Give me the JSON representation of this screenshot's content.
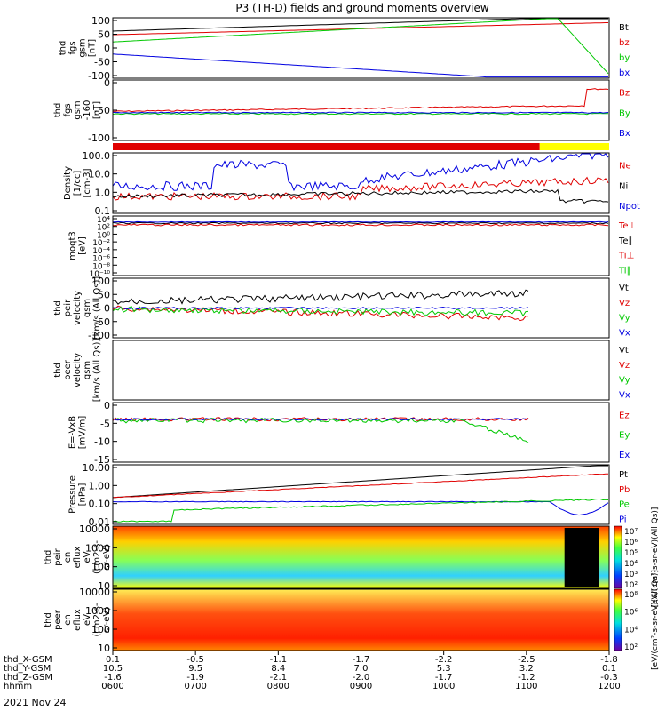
{
  "title": "P3 (TH-D) fields and ground moments overview",
  "date_label": "2021 Nov 24",
  "colors": {
    "black": "#000000",
    "red": "#e00000",
    "green": "#00c800",
    "blue": "#0000e0",
    "yellow": "#ffff00"
  },
  "chart_data": [
    {
      "type": "line",
      "ylabel": [
        "thd",
        "fgs",
        "gsm",
        "[nT]"
      ],
      "yticks": [
        "100",
        "50",
        "0",
        "-50",
        "-100"
      ],
      "ylim": [
        -100,
        100
      ],
      "legend": [
        {
          "name": "Bt",
          "color": "black"
        },
        {
          "name": "bz",
          "color": "red"
        },
        {
          "name": "by",
          "color": "green"
        },
        {
          "name": "bx",
          "color": "blue"
        }
      ]
    },
    {
      "type": "line",
      "ylabel": [
        "thd",
        "fgs",
        "gsm",
        "-160",
        "[nT]"
      ],
      "yticks": [
        "0",
        "-50",
        "-100"
      ],
      "ylim": [
        -130,
        30
      ],
      "legend": [
        {
          "name": "Bz",
          "color": "red"
        },
        {
          "name": "By",
          "color": "green"
        },
        {
          "name": "Bx",
          "color": "blue"
        }
      ]
    },
    {
      "type": "bar",
      "description_bar": true,
      "segments": [
        {
          "from": 0,
          "to": 0.86,
          "color": "red"
        },
        {
          "from": 0.86,
          "to": 1.0,
          "color": "yellow"
        }
      ]
    },
    {
      "type": "line",
      "scale": "log",
      "ylabel": [
        "Density",
        "[1/cc]",
        "[cm-3]"
      ],
      "yticks": [
        "100.0",
        "10.0",
        "1.0",
        "0.1"
      ],
      "ylim": [
        0.1,
        200
      ],
      "legend": [
        {
          "name": "Ne",
          "color": "red"
        },
        {
          "name": "Ni",
          "color": "black"
        },
        {
          "name": "Npot",
          "color": "blue"
        }
      ]
    },
    {
      "type": "line",
      "scale": "log",
      "ylabel": [
        "moqt3",
        "[eV]"
      ],
      "yticks": [
        "10⁴",
        "10²",
        "10⁰",
        "10⁻²",
        "10⁻⁴",
        "10⁻⁶",
        "10⁻⁸",
        "10⁻¹⁰"
      ],
      "legend": [
        {
          "name": "Te⊥",
          "color": "red"
        },
        {
          "name": "Te∥",
          "color": "black"
        },
        {
          "name": "Ti⊥",
          "color": "red"
        },
        {
          "name": "Ti∥",
          "color": "green"
        }
      ]
    },
    {
      "type": "line",
      "ylabel": [
        "thd",
        "peir",
        "velocity",
        "gsm",
        "[km/s (All Qs)]"
      ],
      "yticks": [
        "100",
        "50",
        "0",
        "-50",
        "-100"
      ],
      "ylim": [
        -100,
        100
      ],
      "legend": [
        {
          "name": "Vt",
          "color": "black"
        },
        {
          "name": "Vz",
          "color": "red"
        },
        {
          "name": "Vy",
          "color": "green"
        },
        {
          "name": "Vx",
          "color": "blue"
        }
      ]
    },
    {
      "type": "line",
      "ylabel": [
        "thd",
        "peer",
        "velocity",
        "gsm",
        "[km/s (All Qs)]"
      ],
      "yticks": [],
      "legend": [
        {
          "name": "Vt",
          "color": "black"
        },
        {
          "name": "Vz",
          "color": "red"
        },
        {
          "name": "Vy",
          "color": "green"
        },
        {
          "name": "Vx",
          "color": "blue"
        }
      ]
    },
    {
      "type": "line",
      "ylabel": [
        "E=-VxB",
        "[mV/m]"
      ],
      "yticks": [
        "0",
        "-5",
        "-10",
        "-15"
      ],
      "ylim": [
        -15,
        5
      ],
      "legend": [
        {
          "name": "Ez",
          "color": "red"
        },
        {
          "name": "Ey",
          "color": "green"
        },
        {
          "name": "Ex",
          "color": "blue"
        }
      ]
    },
    {
      "type": "line",
      "scale": "log",
      "ylabel": [
        "Pressure",
        "[nPa]"
      ],
      "yticks": [
        "10.00",
        "1.00",
        "0.10",
        "0.01"
      ],
      "ylim": [
        0.005,
        30
      ],
      "legend": [
        {
          "name": "Pt",
          "color": "black"
        },
        {
          "name": "Pb",
          "color": "red"
        },
        {
          "name": "Pe",
          "color": "green"
        },
        {
          "name": "Pi",
          "color": "blue"
        }
      ]
    },
    {
      "type": "heatmap",
      "ylabel": [
        "thd",
        "peir",
        "en",
        "eflux",
        "eV",
        "(cm2-s-",
        "sr-eV)"
      ],
      "yticks": [
        "10000",
        "1000",
        "100",
        "10"
      ],
      "colorbar_ticks": [
        "10⁷",
        "10⁶",
        "10⁵",
        "10⁴",
        "10³",
        "10²"
      ],
      "colorbar_label": "[eV/(cm²-s-sr-eV)(All Qs)]"
    },
    {
      "type": "heatmap",
      "ylabel": [
        "thd",
        "peer",
        "en",
        "eflux",
        "eV",
        "(cm2-s-",
        "sr-eV)"
      ],
      "yticks": [
        "10000",
        "1000",
        "100",
        "10"
      ],
      "colorbar_ticks": [
        "10⁸",
        "10⁶",
        "10⁴",
        "10²"
      ],
      "colorbar_label": "[eV/(cm²-s-sr-eV)(All Qs)]"
    }
  ],
  "x_axis": {
    "rows": [
      {
        "label": "thd_X-GSM",
        "values": [
          "0.1",
          "-0.5",
          "-1.1",
          "-1.7",
          "-2.2",
          "-2.5",
          "-1.8"
        ]
      },
      {
        "label": "thd_Y-GSM",
        "values": [
          "10.5",
          "9.5",
          "8.4",
          "7.0",
          "5.3",
          "3.2",
          "0.1"
        ]
      },
      {
        "label": "thd_Z-GSM",
        "values": [
          "-1.6",
          "-1.9",
          "-2.1",
          "-2.0",
          "-1.7",
          "-1.2",
          "-0.3"
        ]
      },
      {
        "label": "hhmm",
        "values": [
          "0600",
          "0700",
          "0800",
          "0900",
          "1000",
          "1100",
          "1200"
        ]
      }
    ]
  }
}
